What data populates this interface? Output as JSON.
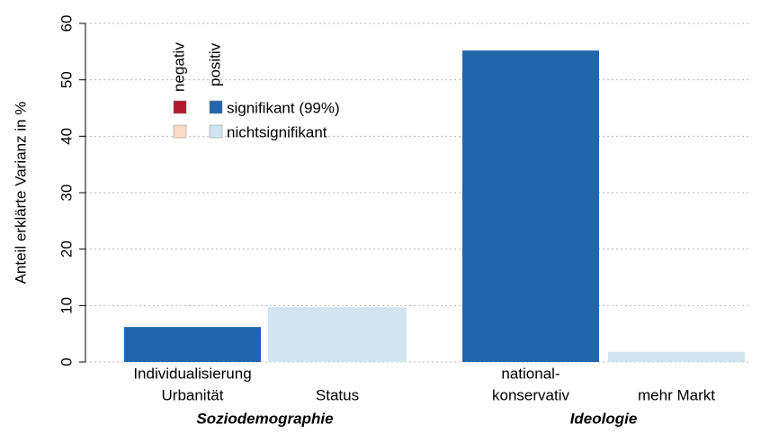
{
  "chart_data": {
    "type": "bar",
    "y_label": "Anteil erklärte Varianz in %",
    "categories": [
      [
        "Individualisierung",
        "Urbanität"
      ],
      [
        "Status"
      ],
      [
        "national-",
        "konservativ"
      ],
      [
        "mehr Markt"
      ]
    ],
    "groups": [
      "Soziodemographie",
      "Ideologie"
    ],
    "values": [
      6.2,
      9.7,
      55.2,
      1.8
    ],
    "colors": [
      "#2166ac",
      "#d1e5f0",
      "#2166ac",
      "#d1e5f0"
    ],
    "ylim": [
      0,
      60
    ],
    "yticks": [
      0,
      10,
      20,
      30,
      40,
      50,
      60
    ],
    "grid": true,
    "legend": {
      "columns": [
        "negativ",
        "positiv"
      ],
      "rows": [
        "signifikant (99%)",
        "nichtsignifikant"
      ],
      "colors": [
        [
          "#b2182b",
          "#2166ac"
        ],
        [
          "#fddbc7",
          "#d1e5f0"
        ]
      ]
    }
  }
}
